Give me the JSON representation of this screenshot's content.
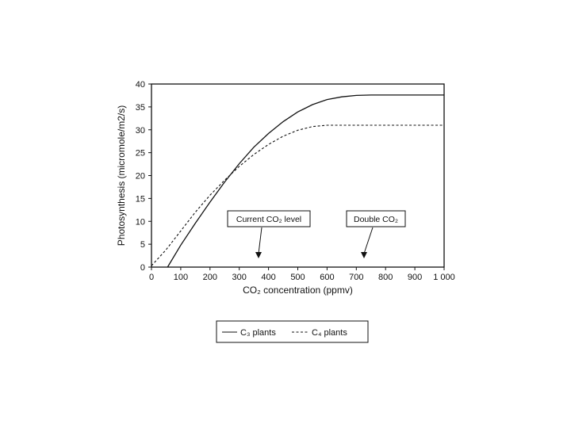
{
  "chart_data": {
    "type": "line",
    "xlabel": "CO₂ concentration (ppmv)",
    "ylabel": "Photosynthesis (micromole/m2/s)",
    "xlim": [
      0,
      1000
    ],
    "ylim": [
      0,
      40
    ],
    "x_ticks": [
      "0",
      "100",
      "200",
      "300",
      "400",
      "500",
      "600",
      "700",
      "800",
      "900",
      "1 000"
    ],
    "y_ticks": [
      "0",
      "5",
      "10",
      "15",
      "20",
      "25",
      "30",
      "35",
      "40"
    ],
    "series": [
      {
        "name": "C₃ plants",
        "style": "solid",
        "x": [
          55,
          100,
          150,
          200,
          250,
          300,
          350,
          400,
          450,
          500,
          550,
          600,
          650,
          700,
          750,
          800,
          1000
        ],
        "y": [
          0,
          4.8,
          9.6,
          14.2,
          18.6,
          22.6,
          26.2,
          29.2,
          31.8,
          33.9,
          35.5,
          36.6,
          37.2,
          37.5,
          37.6,
          37.6,
          37.6
        ]
      },
      {
        "name": "C₄ plants",
        "style": "dashed",
        "x": [
          0,
          50,
          100,
          150,
          200,
          250,
          300,
          350,
          400,
          450,
          500,
          550,
          600,
          650,
          700,
          800,
          1000
        ],
        "y": [
          0.3,
          3.8,
          7.9,
          12.0,
          15.7,
          19.0,
          22.0,
          24.6,
          26.8,
          28.6,
          29.9,
          30.7,
          31.0,
          31.0,
          31.0,
          31.0,
          31.0
        ]
      }
    ],
    "annotations": [
      {
        "text": "Current CO₂ level",
        "x": 365,
        "y": 2.0
      },
      {
        "text": "Double CO₂",
        "x": 725,
        "y": 2.0
      }
    ],
    "legend_position": "below-plot"
  }
}
